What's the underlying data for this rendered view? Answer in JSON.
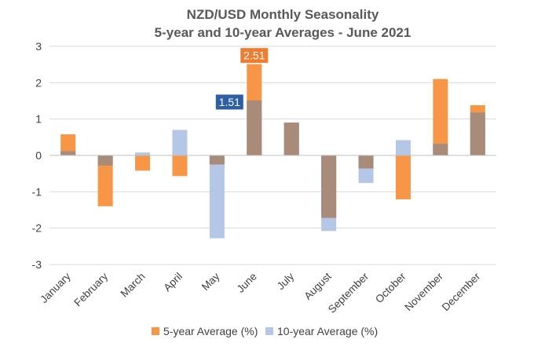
{
  "chart_data": {
    "type": "bar",
    "title": "NZD/USD Monthly Seasonality",
    "subtitle": "5-year and 10-year Averages - June 2021",
    "categories": [
      "January",
      "February",
      "March",
      "April",
      "May",
      "June",
      "July",
      "August",
      "September",
      "October",
      "November",
      "December"
    ],
    "series": [
      {
        "name": "5-year Average (%)",
        "color": "#F79646",
        "values": [
          0.58,
          -1.4,
          -0.42,
          -0.57,
          -0.25,
          2.51,
          0.9,
          -1.72,
          -0.36,
          -1.21,
          2.1,
          1.38
        ]
      },
      {
        "name": "10-year Average (%)",
        "color": "#B4C7E7",
        "values": [
          0.12,
          -0.28,
          0.08,
          0.7,
          -2.28,
          1.51,
          0.9,
          -2.08,
          -0.76,
          0.42,
          0.32,
          1.18
        ]
      }
    ],
    "overlap_color": "#A88B78",
    "ylim": [
      -3,
      3
    ],
    "yticks": [
      3,
      2,
      1,
      0,
      -1,
      -2,
      -3
    ],
    "gridlines": true,
    "legend_position": "bottom",
    "annotations": [
      {
        "month": "June",
        "series": "5-year Average (%)",
        "text": "2.51",
        "color": "#ED7D31"
      },
      {
        "month": "June",
        "series": "10-year Average (%)",
        "text": "1.51",
        "color": "#2E5FA3"
      }
    ]
  }
}
